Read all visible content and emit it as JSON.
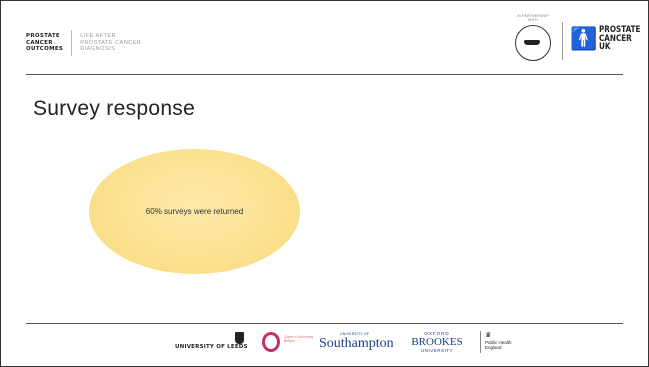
{
  "header": {
    "pco_lines": [
      "PROSTATE",
      "CANCER",
      "OUTCOMES"
    ],
    "tagline_lines": [
      "LIFE AFTER",
      "PROSTATE CANCER",
      "DIAGNOSIS"
    ],
    "movember_label": "IN PARTNERSHIP WITH",
    "pcuk_lines": [
      "PROSTATE",
      "CANCER UK"
    ]
  },
  "slide": {
    "title": "Survey response",
    "ellipse_text": "60% surveys were returned"
  },
  "footer": {
    "leeds": "UNIVERSITY OF LEEDS",
    "qmu": "Queen's University Belfast",
    "southampton_small": "UNIVERSITY OF",
    "southampton": "Southampton",
    "brookes_top": "OXFORD",
    "brookes": "BROOKES",
    "brookes_bottom": "UNIVERSITY",
    "phe_lines": [
      "Public Health",
      "England"
    ]
  },
  "colors": {
    "ellipse_fill": "#fbe291",
    "southampton_blue": "#1a3f8b",
    "qmu_red": "#c0306a"
  }
}
